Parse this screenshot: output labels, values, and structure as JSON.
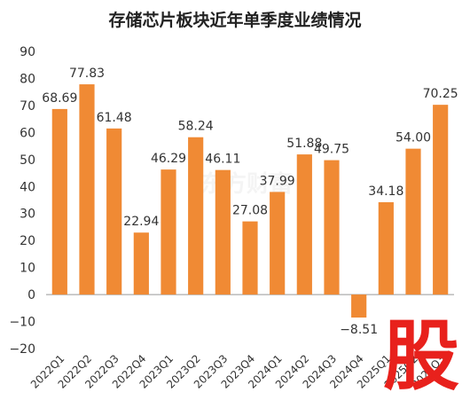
{
  "chart_data": {
    "type": "bar",
    "title": "存储芯片板块近年单季度业绩情况",
    "categories": [
      "2022Q1",
      "2022Q2",
      "2022Q3",
      "2022Q4",
      "2023Q1",
      "2023Q2",
      "2023Q3",
      "2023Q4",
      "2024Q1",
      "2024Q2",
      "2024Q3",
      "2024Q4",
      "2025Q1",
      "2025Q2",
      "2025Q3"
    ],
    "values": [
      68.69,
      77.83,
      61.48,
      22.94,
      46.29,
      58.24,
      46.11,
      27.08,
      37.99,
      51.88,
      49.75,
      -8.51,
      34.18,
      54.0,
      70.25
    ],
    "value_labels": [
      "68.69",
      "77.83",
      "61.48",
      "22.94",
      "46.29",
      "58.24",
      "46.11",
      "27.08",
      "37.99",
      "51.88",
      "49.75",
      "−8.51",
      "34.18",
      "54.00",
      "70.25"
    ],
    "y_ticks": [
      "90",
      "80",
      "70",
      "60",
      "50",
      "40",
      "30",
      "20",
      "10",
      "0",
      "−10",
      "−20"
    ],
    "ylim": [
      -20,
      90
    ],
    "xlabel": "",
    "ylabel": "",
    "grid": false,
    "bar_color": "#f08a34",
    "axis_color": "#999999",
    "label_color": "#333333"
  },
  "watermark": {
    "text": "东方财富"
  },
  "overlay": {
    "char": "股",
    "color": "#e8211c"
  }
}
